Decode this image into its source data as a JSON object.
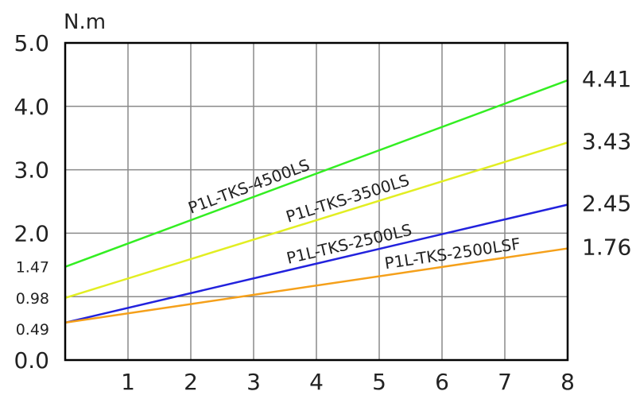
{
  "chart_data": {
    "type": "line",
    "ylabel": "N.m",
    "xlim": [
      0,
      8
    ],
    "ylim": [
      0,
      5
    ],
    "grid": true,
    "x_ticks": [
      "1",
      "2",
      "3",
      "4",
      "5",
      "6",
      "7",
      "8"
    ],
    "y_ticks_major": [
      "0.0",
      "2.0",
      "3.0",
      "4.0",
      "5.0"
    ],
    "y_ticks_minor": [
      "0.49",
      "0.98",
      "1.47"
    ],
    "series": [
      {
        "name": "P1L-TKS-4500LS",
        "color": "#33ee22",
        "x": [
          0,
          8
        ],
        "y": [
          1.47,
          4.41
        ],
        "end_label": "4.41"
      },
      {
        "name": "P1L-TKS-3500LS",
        "color": "#e2ee22",
        "x": [
          0,
          8
        ],
        "y": [
          0.98,
          3.43
        ],
        "end_label": "3.43"
      },
      {
        "name": "P1L-TKS-2500LS",
        "color": "#2222dd",
        "x": [
          0,
          8
        ],
        "y": [
          0.59,
          2.45
        ],
        "end_label": "2.45"
      },
      {
        "name": "P1L-TKS-2500LSF",
        "color": "#f5a01a",
        "x": [
          0,
          8
        ],
        "y": [
          0.59,
          1.76
        ],
        "end_label": "1.76"
      }
    ]
  }
}
